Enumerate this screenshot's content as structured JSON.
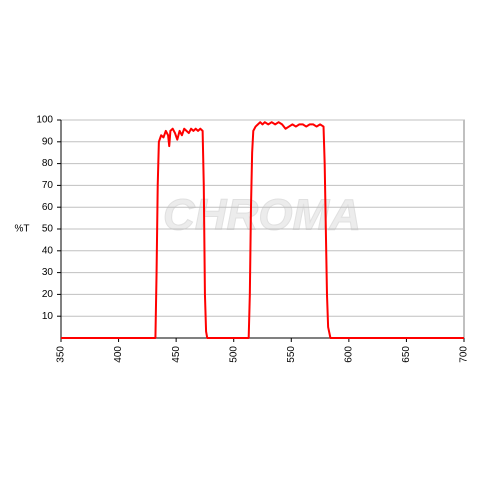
{
  "chart_data": {
    "type": "line",
    "watermark": "CHROMA",
    "y_label": "%T",
    "x": [
      350,
      432,
      433,
      434,
      435,
      437,
      439,
      441,
      443,
      444,
      445,
      447,
      449,
      451,
      453,
      455,
      457,
      459,
      461,
      463,
      465,
      467,
      469,
      471,
      473,
      474,
      475,
      476,
      477,
      513,
      514,
      515,
      516,
      517,
      519,
      521,
      523,
      525,
      527,
      530,
      533,
      536,
      539,
      542,
      545,
      548,
      551,
      554,
      557,
      560,
      563,
      566,
      569,
      572,
      575,
      578,
      579,
      580,
      581,
      582,
      584,
      700
    ],
    "series": [
      {
        "color": "#ff0000",
        "values": [
          0,
          0,
          30,
          70,
          90,
          93,
          92,
          95,
          93,
          88,
          95,
          96,
          94,
          91,
          95,
          93,
          96,
          95,
          94,
          96,
          95,
          96,
          95,
          96,
          95,
          70,
          20,
          3,
          0,
          0,
          20,
          60,
          85,
          95,
          97,
          98,
          99,
          98,
          99,
          98,
          99,
          98,
          99,
          98,
          96,
          97,
          98,
          97,
          98,
          98,
          97,
          98,
          98,
          97,
          98,
          97,
          80,
          50,
          20,
          5,
          0,
          0
        ]
      }
    ],
    "xlim": [
      350,
      700
    ],
    "xticks": [
      350,
      400,
      450,
      500,
      550,
      600,
      650,
      700
    ],
    "ylim": [
      0,
      100
    ],
    "yticks": [
      10,
      20,
      30,
      40,
      50,
      60,
      70,
      80,
      90,
      100
    ],
    "grid": true
  }
}
